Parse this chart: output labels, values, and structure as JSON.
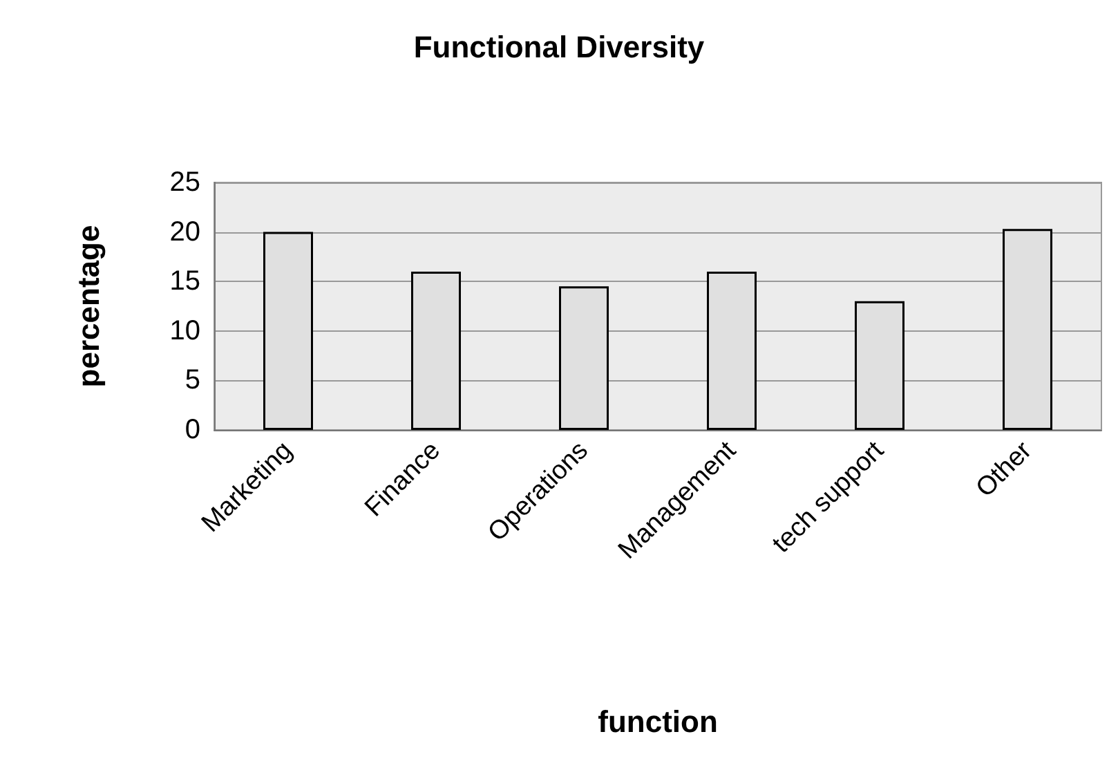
{
  "chart_data": {
    "type": "bar",
    "title": "Functional Diversity",
    "xlabel": "function",
    "ylabel": "percentage",
    "categories": [
      "Marketing",
      "Finance",
      "Operations",
      "Management",
      "tech support",
      "Other"
    ],
    "values": [
      20,
      16,
      14.5,
      16,
      13,
      20.3
    ],
    "color": "#e0e0e0",
    "ylim": [
      0,
      25
    ],
    "yticks": [
      0,
      5,
      10,
      15,
      20,
      25
    ],
    "grid": "y"
  }
}
